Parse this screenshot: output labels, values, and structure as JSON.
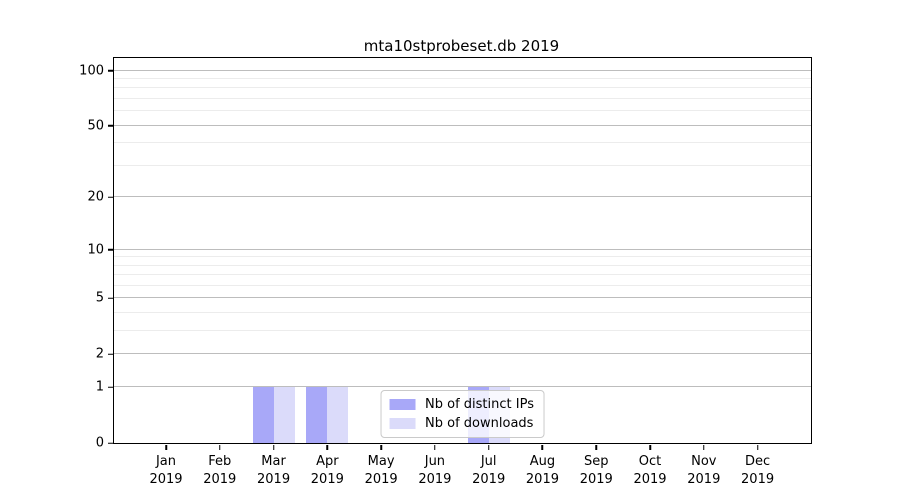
{
  "chart_data": {
    "type": "bar",
    "title": "mta10stprobeset.db 2019",
    "categories": [
      "Jan 2019",
      "Feb 2019",
      "Mar 2019",
      "Apr 2019",
      "May 2019",
      "Jun 2019",
      "Jul 2019",
      "Aug 2019",
      "Sep 2019",
      "Oct 2019",
      "Nov 2019",
      "Dec 2019"
    ],
    "series": [
      {
        "name": "Nb of distinct IPs",
        "color": "#a8a8f8",
        "values": [
          0,
          0,
          1,
          1,
          0,
          0,
          1,
          0,
          0,
          0,
          0,
          0
        ]
      },
      {
        "name": "Nb of downloads",
        "color": "#dbdbfa",
        "values": [
          0,
          0,
          1,
          1,
          0,
          0,
          1,
          0,
          0,
          0,
          0,
          0
        ]
      }
    ],
    "xlabel": "",
    "ylabel": "",
    "yscale": "log1p",
    "ylim": [
      0,
      117
    ],
    "yticks": [
      0,
      1,
      2,
      5,
      10,
      20,
      50,
      100
    ],
    "yticks_minor": [
      3,
      4,
      6,
      7,
      8,
      9,
      30,
      40,
      60,
      70,
      80,
      90
    ],
    "grid": "both",
    "legend": {
      "position": "lower center"
    }
  },
  "colors": {
    "major_grid": "#bdbdbd",
    "minor_grid": "#ececec",
    "axis": "#000000",
    "legend_border": "#cacaca",
    "legend_background": "rgba(255,255,255,0.8)"
  }
}
